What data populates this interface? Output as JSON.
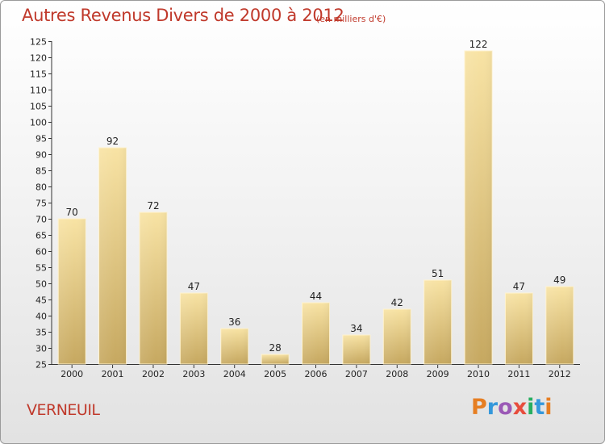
{
  "header": {
    "title": "Autres Revenus Divers de 2000 à 2012",
    "subtitle": "(en milliers d'€)"
  },
  "footer": {
    "city": "VERNEUIL",
    "logo_text": "Proxiti"
  },
  "colors": {
    "title": "#c0392b",
    "bar_light": "#f7e0a0",
    "bar_dark": "#c9aa62"
  },
  "chart_data": {
    "type": "bar",
    "categories": [
      "2000",
      "2001",
      "2002",
      "2003",
      "2004",
      "2005",
      "2006",
      "2007",
      "2008",
      "2009",
      "2010",
      "2011",
      "2012"
    ],
    "values": [
      70,
      92,
      72,
      47,
      36,
      28,
      44,
      34,
      42,
      51,
      122,
      47,
      49
    ],
    "ylim": [
      25,
      125
    ],
    "yticks": [
      25,
      30,
      35,
      40,
      45,
      50,
      55,
      60,
      65,
      70,
      75,
      80,
      85,
      90,
      95,
      100,
      105,
      110,
      115,
      120,
      125
    ],
    "grid": false,
    "data_labels": true
  }
}
